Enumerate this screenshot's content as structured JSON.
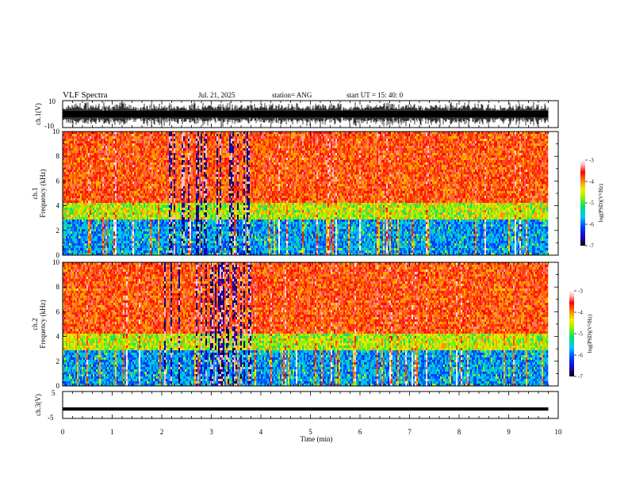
{
  "header": {
    "title": "VLF Spectra",
    "date": "Jul. 21, 2025",
    "station": "station= ANG",
    "start": "start UT = 15: 40: 0"
  },
  "panels": {
    "ch1_wave": {
      "ylabel": "ch.1(V)",
      "ymax": "10",
      "ymin": "-10"
    },
    "ch1_spec": {
      "ylabel_top": "ch.1",
      "ylabel": "Frequency (kHz)"
    },
    "ch2_spec": {
      "ylabel_top": "ch.2",
      "ylabel": "Frequency (kHz)"
    },
    "ch3_wave": {
      "ylabel": "ch.3(V)",
      "ymax": "5",
      "ymin": "-5"
    }
  },
  "colorbar": {
    "label": "log(PSD)(V²/Hz)",
    "ticks": [
      "-3",
      "-4",
      "-5",
      "-6",
      "-7"
    ],
    "scale": [
      "#000000",
      "#1e00c8",
      "#0040ff",
      "#00c8ff",
      "#00e070",
      "#90f000",
      "#f0f000",
      "#ff8000",
      "#ff0000",
      "#ffb0b0",
      "#ffffff"
    ]
  },
  "xaxis": {
    "label": "Time (min)"
  },
  "chart_data": {
    "type": "heatmap",
    "title": "VLF Spectra",
    "xlabel": "Time (min)",
    "x_ticks": [
      "0",
      "1",
      "2",
      "3",
      "4",
      "5",
      "6",
      "7",
      "8",
      "9",
      "10"
    ],
    "xlim": [
      0,
      10
    ],
    "data_extent_min": 9.8,
    "panels": [
      {
        "name": "ch.1(V)",
        "kind": "waveform",
        "ylabel": "ch.1(V)",
        "ylim": [
          -10,
          10
        ],
        "y_ticks": [
          "10",
          "-10"
        ]
      },
      {
        "name": "ch.1",
        "kind": "spectrogram",
        "ylabel": "Frequency (kHz)",
        "ylim": [
          0,
          10
        ],
        "y_ticks": [
          "0",
          "2",
          "4",
          "6",
          "8",
          "10"
        ],
        "color_range": [
          -7,
          -3
        ]
      },
      {
        "name": "ch.2",
        "kind": "spectrogram",
        "ylabel": "Frequency (kHz)",
        "ylim": [
          0,
          10
        ],
        "y_ticks": [
          "0",
          "2",
          "4",
          "6",
          "8",
          "10"
        ],
        "color_range": [
          -7,
          -3
        ]
      },
      {
        "name": "ch.3(V)",
        "kind": "waveform",
        "ylabel": "ch.3(V)",
        "ylim": [
          -5,
          5
        ],
        "y_ticks": [
          "5",
          "-5"
        ],
        "approx_level": -1.5
      }
    ]
  }
}
